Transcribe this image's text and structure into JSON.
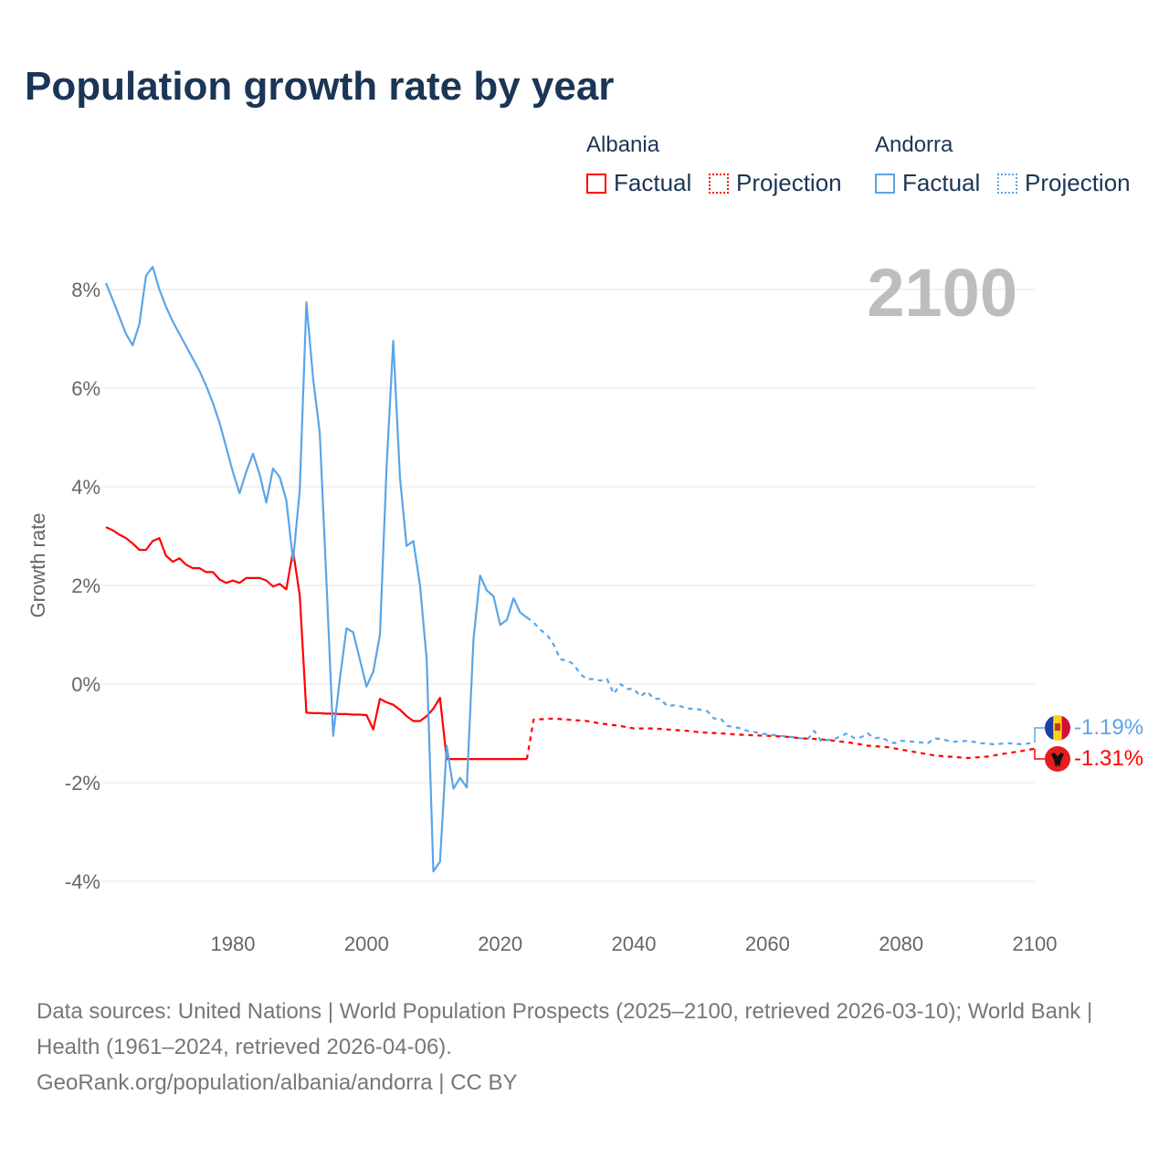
{
  "title": "Population growth rate by year",
  "big_year": "2100",
  "legend": {
    "groups": [
      {
        "name": "Albania",
        "factual": "Factual",
        "projection": "Projection",
        "color": "#ff0000"
      },
      {
        "name": "Andorra",
        "factual": "Factual",
        "projection": "Projection",
        "color": "#5aa5e8"
      }
    ]
  },
  "end_labels": {
    "andorra": "-1.19%",
    "albania": "-1.31%"
  },
  "footer": {
    "sources": "Data sources: United Nations | World Population Prospects (2025–2100, retrieved 2026-03-10); World Bank | Health (1961–2024, retrieved 2026-04-06).",
    "credit": "GeoRank.org/population/albania/andorra | CC BY"
  },
  "chart_data": {
    "type": "line",
    "title": "Population growth rate by year",
    "xlabel": "",
    "ylabel": "Growth rate",
    "xlim": [
      1961,
      2100
    ],
    "ylim": [
      -4.8,
      8.8
    ],
    "x_ticks": [
      1980,
      2000,
      2020,
      2040,
      2060,
      2080,
      2100
    ],
    "x_tick_labels": [
      "1980",
      "2000",
      "2020",
      "2040",
      "2060",
      "2080",
      "2100"
    ],
    "y_ticks": [
      -4,
      -2,
      0,
      2,
      4,
      6,
      8
    ],
    "y_tick_labels": [
      "-4%",
      "-2%",
      "0%",
      "2%",
      "4%",
      "6%",
      "8%"
    ],
    "grid": true,
    "legend_position": "top-right",
    "series": [
      {
        "name": "Albania Factual",
        "color": "#ff0000",
        "dash": false,
        "x": [
          1961,
          1962,
          1963,
          1964,
          1965,
          1966,
          1967,
          1968,
          1969,
          1970,
          1971,
          1972,
          1973,
          1974,
          1975,
          1976,
          1977,
          1978,
          1979,
          1980,
          1981,
          1982,
          1983,
          1984,
          1985,
          1986,
          1987,
          1988,
          1989,
          1990,
          1991,
          1992,
          1993,
          1994,
          1995,
          1996,
          1997,
          1998,
          1999,
          2000,
          2001,
          2002,
          2003,
          2004,
          2005,
          2006,
          2007,
          2008,
          2009,
          2010,
          2011,
          2012,
          2013,
          2014,
          2015,
          2016,
          2017,
          2018,
          2019,
          2020,
          2021,
          2022,
          2023,
          2024
        ],
        "y": [
          3.18,
          3.12,
          3.03,
          2.96,
          2.85,
          2.72,
          2.72,
          2.9,
          2.96,
          2.6,
          2.48,
          2.55,
          2.42,
          2.35,
          2.35,
          2.27,
          2.27,
          2.12,
          2.05,
          2.1,
          2.05,
          2.15,
          2.15,
          2.15,
          2.1,
          1.98,
          2.03,
          1.92,
          2.7,
          1.8,
          -0.58,
          -0.59,
          -0.59,
          -0.6,
          -0.6,
          -0.61,
          -0.61,
          -0.62,
          -0.62,
          -0.63,
          -0.92,
          -0.3,
          -0.37,
          -0.42,
          -0.52,
          -0.65,
          -0.75,
          -0.75,
          -0.65,
          -0.5,
          -0.28,
          -1.52,
          -1.52,
          -1.52,
          -1.52,
          -1.52,
          -1.52,
          -1.52,
          -1.52,
          -1.52,
          -1.52,
          -1.52,
          -1.52,
          -1.52
        ]
      },
      {
        "name": "Albania Projection",
        "color": "#ff0000",
        "dash": true,
        "x": [
          2024,
          2025,
          2028,
          2030,
          2033,
          2035,
          2038,
          2040,
          2043,
          2045,
          2048,
          2050,
          2053,
          2055,
          2058,
          2060,
          2063,
          2065,
          2068,
          2070,
          2073,
          2075,
          2078,
          2080,
          2083,
          2085,
          2088,
          2090,
          2093,
          2095,
          2098,
          2100
        ],
        "y": [
          -1.52,
          -0.72,
          -0.7,
          -0.72,
          -0.75,
          -0.8,
          -0.85,
          -0.9,
          -0.9,
          -0.92,
          -0.95,
          -0.98,
          -1.0,
          -1.02,
          -1.04,
          -1.05,
          -1.07,
          -1.1,
          -1.12,
          -1.15,
          -1.2,
          -1.25,
          -1.28,
          -1.33,
          -1.4,
          -1.45,
          -1.48,
          -1.5,
          -1.47,
          -1.42,
          -1.36,
          -1.31
        ]
      },
      {
        "name": "Andorra Factual",
        "color": "#5aa5e8",
        "dash": false,
        "x": [
          1961,
          1962,
          1963,
          1964,
          1965,
          1966,
          1967,
          1968,
          1969,
          1970,
          1971,
          1972,
          1973,
          1974,
          1975,
          1976,
          1977,
          1978,
          1979,
          1980,
          1981,
          1982,
          1983,
          1984,
          1985,
          1986,
          1987,
          1988,
          1989,
          1990,
          1991,
          1992,
          1993,
          1994,
          1995,
          1996,
          1997,
          1998,
          1999,
          2000,
          2001,
          2002,
          2003,
          2004,
          2005,
          2006,
          2007,
          2008,
          2009,
          2010,
          2011,
          2012,
          2013,
          2014,
          2015,
          2016,
          2017,
          2018,
          2019,
          2020,
          2021,
          2022,
          2023,
          2024
        ],
        "y": [
          8.13,
          7.8,
          7.45,
          7.1,
          6.87,
          7.3,
          8.28,
          8.46,
          8.0,
          7.65,
          7.35,
          7.1,
          6.85,
          6.6,
          6.35,
          6.05,
          5.7,
          5.3,
          4.8,
          4.3,
          3.87,
          4.3,
          4.67,
          4.25,
          3.68,
          4.37,
          4.2,
          3.73,
          2.5,
          3.93,
          7.74,
          6.2,
          5.1,
          2.1,
          -1.05,
          0.1,
          1.13,
          1.05,
          0.5,
          -0.05,
          0.25,
          1.0,
          4.4,
          6.96,
          4.2,
          2.8,
          2.9,
          2.0,
          0.5,
          -3.8,
          -3.6,
          -1.25,
          -2.12,
          -1.9,
          -2.1,
          0.9,
          2.2,
          1.9,
          1.78,
          1.2,
          1.3,
          1.74,
          1.45,
          1.35
        ]
      },
      {
        "name": "Andorra Projection",
        "color": "#5aa5e8",
        "dash": true,
        "x": [
          2024,
          2025,
          2026,
          2027,
          2028,
          2029,
          2030,
          2031,
          2032,
          2033,
          2034,
          2035,
          2036,
          2037,
          2038,
          2039,
          2040,
          2041,
          2042,
          2043,
          2044,
          2045,
          2046,
          2047,
          2048,
          2049,
          2050,
          2051,
          2052,
          2053,
          2054,
          2055,
          2056,
          2057,
          2058,
          2059,
          2060,
          2062,
          2064,
          2066,
          2067,
          2068,
          2070,
          2071,
          2072,
          2073,
          2074,
          2075,
          2076,
          2077,
          2078,
          2079,
          2080,
          2082,
          2084,
          2085,
          2086,
          2088,
          2090,
          2092,
          2094,
          2096,
          2098,
          2100
        ],
        "y": [
          1.35,
          1.25,
          1.1,
          1.0,
          0.8,
          0.5,
          0.48,
          0.4,
          0.2,
          0.1,
          0.1,
          0.07,
          0.1,
          -0.2,
          0.0,
          -0.1,
          -0.1,
          -0.25,
          -0.15,
          -0.3,
          -0.3,
          -0.45,
          -0.43,
          -0.45,
          -0.5,
          -0.5,
          -0.52,
          -0.55,
          -0.7,
          -0.7,
          -0.85,
          -0.87,
          -0.9,
          -0.95,
          -0.97,
          -1.0,
          -1.02,
          -1.05,
          -1.08,
          -1.12,
          -0.95,
          -1.15,
          -1.12,
          -1.05,
          -1.0,
          -1.1,
          -1.08,
          -1.0,
          -1.1,
          -1.08,
          -1.15,
          -1.2,
          -1.15,
          -1.17,
          -1.2,
          -1.1,
          -1.12,
          -1.17,
          -1.15,
          -1.2,
          -1.22,
          -1.2,
          -1.22,
          -1.19
        ]
      }
    ]
  }
}
